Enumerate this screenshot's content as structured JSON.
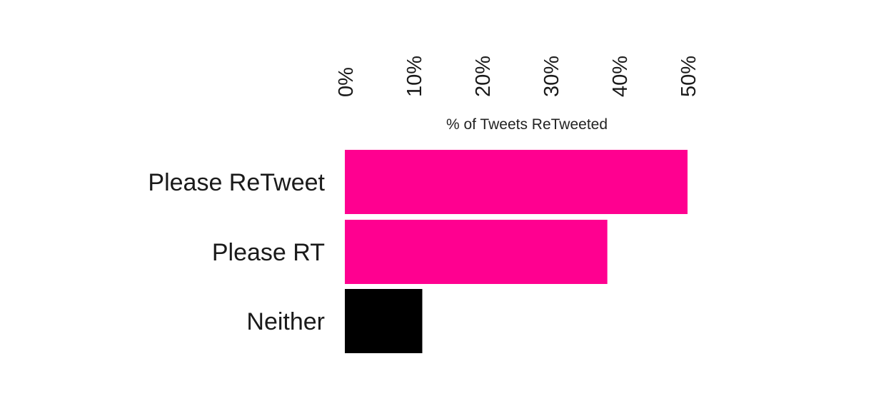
{
  "chart_data": {
    "type": "bar",
    "orientation": "horizontal",
    "title": "",
    "xlabel": "% of Tweets ReTweeted",
    "ylabel": "",
    "xlim": [
      0,
      50
    ],
    "x_ticks": [
      "0%",
      "10%",
      "20%",
      "30%",
      "40%",
      "50%"
    ],
    "x_tick_values": [
      0,
      10,
      20,
      30,
      40,
      50
    ],
    "tick_label_rotation": "vertical",
    "axis_position": "top",
    "grid": false,
    "legend": "none",
    "categories": [
      "Please ReTweet",
      "Please RT",
      "Neither"
    ],
    "values": [
      50,
      38.3,
      11.3
    ],
    "bar_colors": [
      "#ff0090",
      "#ff0090",
      "#000000"
    ]
  }
}
